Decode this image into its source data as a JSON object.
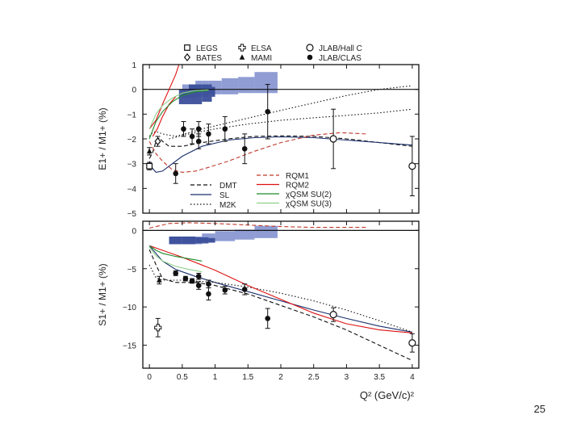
{
  "slide": {
    "page_number": "25"
  },
  "chart_data": [
    {
      "type": "scatter",
      "panel": "top",
      "ylabel": "E1+ / M1+ (%)",
      "xlabel": "",
      "xlim": [
        -0.1,
        4.1
      ],
      "ylim": [
        -5,
        1
      ],
      "yticks": [
        1,
        0,
        -1,
        -2,
        -3,
        -4,
        -5
      ],
      "ytick_labels": [
        "1",
        "0",
        "−1",
        "−2",
        "−3",
        "−4",
        "−5"
      ],
      "data_legend": [
        {
          "name": "LEGS",
          "marker": "open-square"
        },
        {
          "name": "BATES",
          "marker": "open-diamond"
        },
        {
          "name": "ELSA",
          "marker": "open-cross"
        },
        {
          "name": "MAMI",
          "marker": "filled-triangle"
        },
        {
          "name": "JLAB/Hall C",
          "marker": "open-circle"
        },
        {
          "name": "JLAB/CLAS",
          "marker": "filled-circle"
        }
      ],
      "model_legend": [
        {
          "name": "DMT",
          "style": "dashed",
          "color": "#111111"
        },
        {
          "name": "SL",
          "style": "solid",
          "color": "#1a2f6b"
        },
        {
          "name": "M2K",
          "style": "dotted",
          "color": "#111111"
        },
        {
          "name": "RQM1",
          "style": "dashed",
          "color": "#c0392b"
        },
        {
          "name": "RQM2",
          "style": "solid",
          "color": "#d11"
        },
        {
          "name": "χQSM SU(2)",
          "style": "solid",
          "color": "#1f8a2e"
        },
        {
          "name": "χQSM SU(3)",
          "style": "solid",
          "color": "#8fd08a"
        }
      ],
      "points": [
        {
          "set": "LEGS",
          "marker": "open-square",
          "x": 0.0,
          "y": -3.1,
          "err": 0.15
        },
        {
          "set": "BATES",
          "marker": "open-diamond",
          "x": 0.127,
          "y": -2.1,
          "err": 0.2
        },
        {
          "set": "MAMI",
          "marker": "filled-triangle",
          "x": 0.0,
          "y": -2.5,
          "err": 0.15
        },
        {
          "set": "JLAB/CLAS",
          "marker": "filled-circle",
          "x": 0.4,
          "y": -3.4,
          "err": 0.4
        },
        {
          "set": "JLAB/CLAS",
          "marker": "filled-circle",
          "x": 0.52,
          "y": -1.6,
          "err": 0.3
        },
        {
          "set": "JLAB/CLAS",
          "marker": "filled-circle",
          "x": 0.65,
          "y": -1.9,
          "err": 0.3
        },
        {
          "set": "JLAB/CLAS",
          "marker": "filled-circle",
          "x": 0.75,
          "y": -1.6,
          "err": 0.3
        },
        {
          "set": "JLAB/CLAS",
          "marker": "filled-circle",
          "x": 0.75,
          "y": -2.1,
          "err": 0.3
        },
        {
          "set": "JLAB/CLAS",
          "marker": "filled-circle",
          "x": 0.9,
          "y": -1.8,
          "err": 0.4
        },
        {
          "set": "JLAB/CLAS",
          "marker": "filled-circle",
          "x": 1.15,
          "y": -1.6,
          "err": 0.5
        },
        {
          "set": "JLAB/CLAS",
          "marker": "filled-circle",
          "x": 1.45,
          "y": -2.4,
          "err": 0.6
        },
        {
          "set": "JLAB/CLAS",
          "marker": "filled-circle",
          "x": 1.8,
          "y": -0.9,
          "err": 1.1
        },
        {
          "set": "JLAB/Hall C",
          "marker": "open-circle",
          "x": 2.8,
          "y": -2.0,
          "err": 1.2
        },
        {
          "set": "JLAB/Hall C",
          "marker": "open-circle",
          "x": 4.0,
          "y": -3.1,
          "err": 1.2
        }
      ],
      "bands": [
        {
          "shade": "light",
          "x": [
            0.5,
            0.7,
            0.9,
            1.1,
            1.35,
            1.6,
            1.95
          ],
          "y_low": [
            -0.35,
            -0.3,
            -0.2,
            -0.2,
            -0.15,
            -0.15,
            -0.05
          ],
          "y_high": [
            0.2,
            0.35,
            0.35,
            0.45,
            0.5,
            0.7,
            0.7
          ]
        },
        {
          "shade": "dark",
          "x": [
            0.45,
            0.6,
            0.8,
            0.95,
            1.0
          ],
          "y_low": [
            -0.6,
            -0.6,
            -0.5,
            -0.3,
            -0.3
          ],
          "y_high": [
            0.0,
            0.2,
            0.2,
            0.1,
            0.1
          ]
        }
      ],
      "curves": [
        {
          "name": "DMT",
          "style": "dashed",
          "color": "#111111",
          "x": [
            0.0,
            0.05,
            0.1,
            0.15,
            0.2,
            0.3,
            0.5,
            0.8,
            1.2,
            1.6,
            2.0,
            2.5,
            3.0,
            3.5,
            4.0
          ],
          "y": [
            -2.8,
            -2.55,
            -2.1,
            -1.95,
            -2.1,
            -2.3,
            -2.3,
            -2.15,
            -2.0,
            -1.9,
            -1.88,
            -1.9,
            -2.0,
            -2.15,
            -2.3
          ]
        },
        {
          "name": "SL",
          "style": "solid",
          "color": "#1a2f6b",
          "x": [
            0.0,
            0.05,
            0.1,
            0.2,
            0.3,
            0.5,
            0.8,
            1.2,
            1.6,
            2.0,
            2.5,
            3.0,
            3.5,
            4.0
          ],
          "y": [
            -2.9,
            -3.2,
            -3.35,
            -3.3,
            -3.1,
            -2.7,
            -2.3,
            -2.05,
            -1.95,
            -1.92,
            -1.95,
            -2.05,
            -2.15,
            -2.25
          ]
        },
        {
          "name": "M2K",
          "style": "dotted",
          "color": "#111111",
          "x": [
            0.0,
            0.05,
            0.1,
            0.2,
            0.4,
            0.6,
            0.8,
            1.2,
            1.6,
            2.0,
            2.5,
            3.0,
            3.5,
            4.0
          ],
          "y": [
            -1.9,
            -1.75,
            -1.7,
            -1.8,
            -1.9,
            -1.75,
            -1.6,
            -1.35,
            -1.1,
            -0.85,
            -0.55,
            -0.25,
            0.0,
            0.15
          ]
        },
        {
          "name": "DMT",
          "style": "dotted",
          "color": "#111111",
          "x": [
            0.3,
            0.6,
            1.0,
            1.5,
            2.0,
            2.5,
            3.0,
            3.5,
            4.0
          ],
          "y": [
            -2.0,
            -1.8,
            -1.6,
            -1.4,
            -1.25,
            -1.15,
            -1.05,
            -0.95,
            -0.8
          ]
        },
        {
          "name": "RQM1",
          "style": "dashed",
          "color": "#c0392b",
          "x": [
            0.0,
            0.1,
            0.2,
            0.35,
            0.5,
            0.7,
            0.9,
            1.2,
            1.6,
            2.0,
            2.5,
            2.9,
            3.3
          ],
          "y": [
            -2.1,
            -2.6,
            -2.9,
            -3.25,
            -3.35,
            -3.3,
            -3.15,
            -2.9,
            -2.5,
            -2.15,
            -1.85,
            -1.75,
            -1.8
          ]
        },
        {
          "name": "RQM2",
          "style": "solid",
          "color": "#d11",
          "x": [
            0.0,
            0.1,
            0.2,
            0.3,
            0.4,
            0.45
          ],
          "y": [
            -1.6,
            -1.25,
            -0.6,
            0.0,
            0.6,
            1.0
          ]
        },
        {
          "name": "RQM2",
          "style": "solid",
          "color": "#d11",
          "x": [
            0.05,
            0.12,
            0.2,
            0.3,
            0.4
          ],
          "y": [
            -1.9,
            -1.6,
            -1.1,
            -0.6,
            -0.3
          ]
        },
        {
          "name": "χQSM SU(2)",
          "style": "solid",
          "color": "#1f8a2e",
          "x": [
            0.0,
            0.1,
            0.2,
            0.35,
            0.5,
            0.7,
            0.9
          ],
          "y": [
            -2.0,
            -1.3,
            -0.9,
            -0.5,
            -0.25,
            -0.1,
            -0.05
          ]
        },
        {
          "name": "χQSM SU(3)",
          "style": "solid",
          "color": "#8fd08a",
          "x": [
            0.0,
            0.1,
            0.2,
            0.35,
            0.5,
            0.7,
            0.9
          ],
          "y": [
            -1.6,
            -1.0,
            -0.65,
            -0.35,
            -0.15,
            -0.05,
            -0.02
          ]
        }
      ]
    },
    {
      "type": "scatter",
      "panel": "bottom",
      "ylabel": "S1+ / M1+ (%)",
      "xlabel": "Q² (GeV/c)²",
      "xlim": [
        -0.1,
        4.1
      ],
      "ylim": [
        -18,
        1.2
      ],
      "yticks": [
        0,
        -5,
        -10,
        -15
      ],
      "ytick_labels": [
        "0",
        "−5",
        "−10",
        "−15"
      ],
      "xticks": [
        0,
        0.5,
        1,
        1.5,
        2,
        2.5,
        3,
        3.5,
        4
      ],
      "xtick_labels": [
        "0",
        "0.5",
        "1",
        "1.5",
        "2",
        "2.5",
        "3",
        "3.5",
        "4"
      ],
      "points": [
        {
          "set": "MAMI",
          "marker": "filled-triangle",
          "x": 0.15,
          "y": -6.5,
          "err": 0.5
        },
        {
          "set": "ELSA",
          "marker": "open-cross",
          "x": 0.13,
          "y": -12.7,
          "err": 1.2
        },
        {
          "set": "JLAB/CLAS",
          "marker": "filled-circle",
          "x": 0.4,
          "y": -5.6,
          "err": 0.3
        },
        {
          "set": "JLAB/CLAS",
          "marker": "filled-circle",
          "x": 0.55,
          "y": -6.3,
          "err": 0.3
        },
        {
          "set": "JLAB/CLAS",
          "marker": "filled-circle",
          "x": 0.65,
          "y": -6.6,
          "err": 0.3
        },
        {
          "set": "JLAB/CLAS",
          "marker": "filled-circle",
          "x": 0.75,
          "y": -6.0,
          "err": 0.4
        },
        {
          "set": "JLAB/CLAS",
          "marker": "filled-circle",
          "x": 0.75,
          "y": -7.2,
          "err": 0.5
        },
        {
          "set": "JLAB/CLAS",
          "marker": "filled-circle",
          "x": 0.9,
          "y": -7.0,
          "err": 0.5
        },
        {
          "set": "JLAB/CLAS",
          "marker": "filled-circle",
          "x": 0.9,
          "y": -8.3,
          "err": 0.8
        },
        {
          "set": "JLAB/CLAS",
          "marker": "filled-circle",
          "x": 1.15,
          "y": -7.8,
          "err": 0.5
        },
        {
          "set": "JLAB/CLAS",
          "marker": "filled-circle",
          "x": 1.45,
          "y": -7.7,
          "err": 0.7
        },
        {
          "set": "JLAB/CLAS",
          "marker": "filled-circle",
          "x": 1.8,
          "y": -11.5,
          "err": 1.3
        },
        {
          "set": "JLAB/Hall C",
          "marker": "open-circle",
          "x": 2.8,
          "y": -11.0,
          "err": 0.9
        },
        {
          "set": "JLAB/Hall C",
          "marker": "open-circle",
          "x": 4.0,
          "y": -14.7,
          "err": 1.2
        }
      ],
      "bands": [
        {
          "shade": "light",
          "x": [
            0.3,
            0.5,
            0.8,
            1.0,
            1.3,
            1.6,
            1.95
          ],
          "y_low": [
            -1.8,
            -1.8,
            -1.5,
            -1.4,
            -1.2,
            -1.0,
            -1.0
          ],
          "y_high": [
            -0.8,
            -0.8,
            -0.4,
            -0.1,
            0.1,
            0.6,
            0.6
          ]
        },
        {
          "shade": "dark",
          "x": [
            0.3,
            0.5,
            0.7,
            0.9,
            1.0
          ],
          "y_low": [
            -1.8,
            -1.8,
            -1.7,
            -1.6,
            -1.6
          ],
          "y_high": [
            -0.8,
            -0.8,
            -0.9,
            -1.0,
            -1.0
          ]
        }
      ],
      "curves": [
        {
          "name": "DMT",
          "style": "dashed",
          "color": "#111111",
          "x": [
            0.0,
            0.1,
            0.2,
            0.4,
            0.7,
            1.0,
            1.5,
            2.0,
            2.5,
            3.0,
            3.5,
            4.0
          ],
          "y": [
            -2.5,
            -4.5,
            -6.3,
            -6.8,
            -6.8,
            -7.2,
            -8.3,
            -9.8,
            -11.3,
            -13.0,
            -15.0,
            -17.0
          ]
        },
        {
          "name": "SL",
          "style": "solid",
          "color": "#1a2f6b",
          "x": [
            0.0,
            0.2,
            0.4,
            0.7,
            1.0,
            1.5,
            2.0,
            2.5,
            3.0,
            3.5,
            4.0
          ],
          "y": [
            -2.0,
            -4.0,
            -5.1,
            -6.0,
            -6.8,
            -8.0,
            -9.2,
            -10.4,
            -11.5,
            -12.5,
            -13.3
          ]
        },
        {
          "name": "M2K",
          "style": "dotted",
          "color": "#111111",
          "x": [
            0.0,
            0.1,
            0.2,
            0.5,
            1.0,
            1.5,
            2.0,
            2.5,
            3.0,
            3.5,
            4.0
          ],
          "y": [
            -4.5,
            -6.2,
            -6.5,
            -6.5,
            -6.8,
            -7.4,
            -8.2,
            -9.2,
            -10.4,
            -11.8,
            -13.3
          ]
        },
        {
          "name": "RQM1",
          "style": "dashed",
          "color": "#c0392b",
          "x": [
            0.0,
            0.3,
            0.6,
            1.0,
            1.5,
            2.0,
            2.5,
            3.0,
            3.3
          ],
          "y": [
            0.3,
            0.9,
            1.0,
            0.9,
            0.7,
            0.5,
            0.4,
            0.4,
            0.4
          ]
        },
        {
          "name": "RQM2",
          "style": "solid",
          "color": "#d11",
          "x": [
            0.0,
            0.2,
            0.5,
            1.0,
            1.5,
            2.0,
            2.5,
            3.0,
            3.5,
            4.0
          ],
          "y": [
            -2.0,
            -2.6,
            -3.5,
            -5.2,
            -7.2,
            -9.0,
            -10.8,
            -12.2,
            -13.0,
            -13.4
          ]
        },
        {
          "name": "χQSM SU(2)",
          "style": "solid",
          "color": "#1f8a2e",
          "x": [
            0.0,
            0.1,
            0.2,
            0.4,
            0.6,
            0.8
          ],
          "y": [
            -2.0,
            -2.6,
            -3.0,
            -3.4,
            -3.7,
            -4.0
          ]
        },
        {
          "name": "χQSM SU(3)",
          "style": "solid",
          "color": "#8fd08a",
          "x": [
            0.0,
            0.1,
            0.2,
            0.4,
            0.6,
            0.8
          ],
          "y": [
            -2.2,
            -3.3,
            -4.0,
            -4.7,
            -5.1,
            -5.4
          ]
        }
      ]
    }
  ]
}
